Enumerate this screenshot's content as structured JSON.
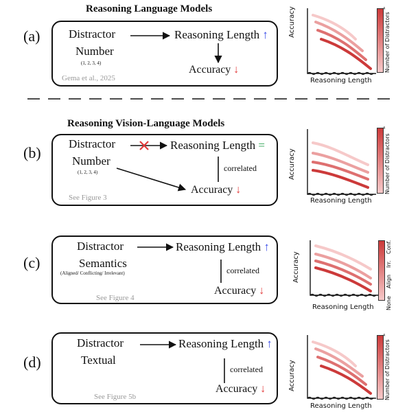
{
  "sec_top_title": "Reasoning Language Models",
  "sec_bottom_title": "Reasoning Vision-Language Models",
  "panels": [
    {
      "label": "(a)",
      "left1": "Distractor",
      "left2": "Number",
      "left_sub": "(1, 2, 3, 4)",
      "reasoning": "Reasoning Length",
      "reasoning_mark": "↑",
      "accuracy": "Accuracy",
      "accuracy_mark": "↓",
      "correlated": "",
      "cite": "Gema et al., 2025",
      "legend": "Number of Distractors"
    },
    {
      "label": "(b)",
      "left1": "Distractor",
      "left2": "Number",
      "left_sub": "(1, 2, 3, 4)",
      "reasoning": "Reasoning Length",
      "reasoning_mark": "=",
      "accuracy": "Accuracy",
      "accuracy_mark": "↓",
      "correlated": "correlated",
      "cite": "See Figure 3",
      "legend": "Number of Distractors"
    },
    {
      "label": "(c)",
      "left1": "Distractor",
      "left2": "Semantics",
      "left_sub": "(Aligned/ Conflicting/ Irrelevant)",
      "reasoning": "Reasoning Length",
      "reasoning_mark": "↑",
      "accuracy": "Accuracy",
      "accuracy_mark": "↓",
      "correlated": "correlated",
      "cite": "See Figure 4",
      "legend_items": [
        "None",
        "Align",
        "Irr.",
        "Conf."
      ]
    },
    {
      "label": "(d)",
      "left1": "Distractor",
      "left2": "Textual",
      "left_sub": "",
      "reasoning": "Reasoning Length",
      "reasoning_mark": "↑",
      "accuracy": "Accuracy",
      "accuracy_mark": "↓",
      "correlated": "correlated",
      "cite": "See Figure 5b",
      "legend": "Number of Distractors"
    }
  ],
  "mini_axes": {
    "ylabel": "Accuracy",
    "xlabel": "Reasoning Length"
  },
  "colorbar_ticks": [
    "1",
    "2",
    "3",
    "4"
  ],
  "colors": {
    "series_light": "#f6c9c9",
    "series_2": "#eba0a0",
    "series_3": "#de7070",
    "series_dark": "#cc3a3a",
    "increase": "#3b4ee8",
    "decrease": "#e23a3a",
    "same": "#2aa14f"
  }
}
